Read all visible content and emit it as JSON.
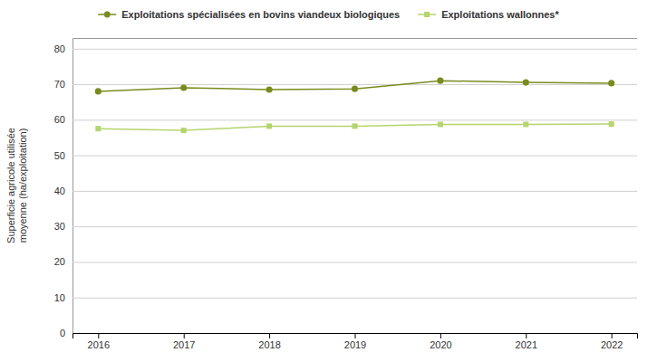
{
  "chart_data": {
    "type": "line",
    "ylabel": "Superficie agricole utilisée\nmoyenne (ha/exploitation)",
    "x": [
      2016,
      2017,
      2018,
      2019,
      2020,
      2021,
      2022
    ],
    "xlim": [
      2015.7,
      2022.3
    ],
    "xticks": [
      2016,
      2017,
      2018,
      2019,
      2020,
      2021,
      2022
    ],
    "ylim": [
      0,
      83
    ],
    "yticks": [
      0,
      10,
      20,
      30,
      40,
      50,
      60,
      70,
      80
    ],
    "grid": true,
    "legend": "top",
    "series": [
      {
        "name": "Exploitations spécialisées en bovins viandeux biologiques",
        "color": "#7a8b1e",
        "marker": "circle",
        "values": [
          68.0,
          69.0,
          68.5,
          68.7,
          71.0,
          70.5,
          70.3
        ]
      },
      {
        "name": "Exploitations wallonnes*",
        "color": "#b5d46e",
        "marker": "square",
        "values": [
          57.5,
          57.0,
          58.2,
          58.2,
          58.7,
          58.7,
          58.8
        ]
      }
    ]
  }
}
